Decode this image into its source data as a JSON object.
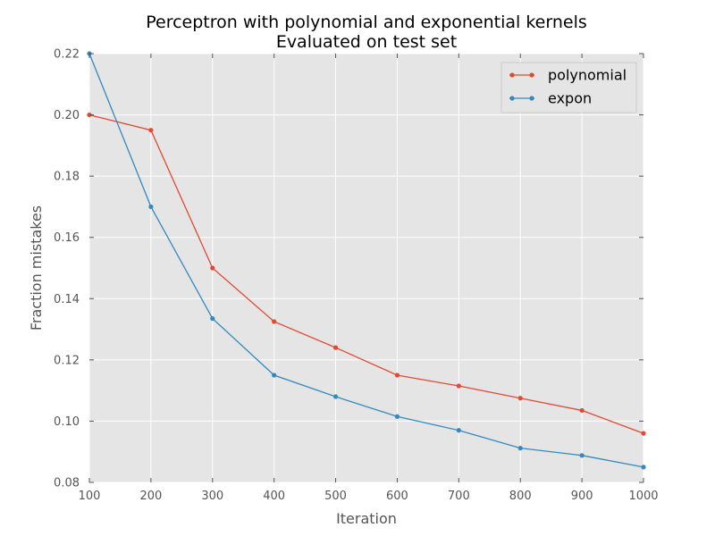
{
  "chart_data": {
    "type": "line",
    "title": "Perceptron with polynomial and exponential kernels",
    "subtitle": "Evaluated on test set",
    "xlabel": "Iteration",
    "ylabel": "Fraction mistakes",
    "xlim": [
      100,
      1000
    ],
    "ylim": [
      0.08,
      0.22
    ],
    "x_ticks": [
      "100",
      "200",
      "300",
      "400",
      "500",
      "600",
      "700",
      "800",
      "900",
      "1000"
    ],
    "y_ticks": [
      "0.08",
      "0.10",
      "0.12",
      "0.14",
      "0.16",
      "0.18",
      "0.20",
      "0.22"
    ],
    "grid": true,
    "legend_position": "top-right",
    "x": [
      100,
      200,
      300,
      400,
      500,
      600,
      700,
      800,
      900,
      1000
    ],
    "series": [
      {
        "name": "polynomial",
        "color": "#e24a33",
        "values": [
          0.2,
          0.195,
          0.15,
          0.1325,
          0.124,
          0.115,
          0.1115,
          0.1075,
          0.1035,
          0.096
        ]
      },
      {
        "name": "expon",
        "color": "#348abd",
        "values": [
          0.22,
          0.17,
          0.1335,
          0.115,
          0.108,
          0.1015,
          0.097,
          0.0912,
          0.0888,
          0.085
        ]
      }
    ]
  }
}
